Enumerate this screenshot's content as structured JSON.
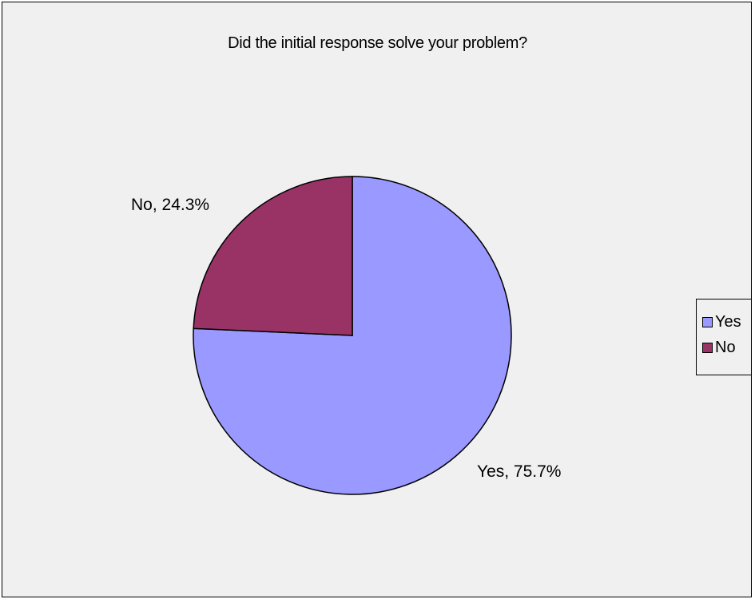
{
  "chart_data": {
    "type": "pie",
    "title": "Did the initial response solve your problem?",
    "categories": [
      "Yes",
      "No"
    ],
    "values": [
      75.7,
      24.3
    ],
    "data_labels": [
      "Yes, 75.7%",
      "No, 24.3%"
    ],
    "colors": [
      "#9999ff",
      "#993366"
    ],
    "legend": {
      "placement": "right",
      "entries": [
        "Yes",
        "No"
      ]
    }
  }
}
